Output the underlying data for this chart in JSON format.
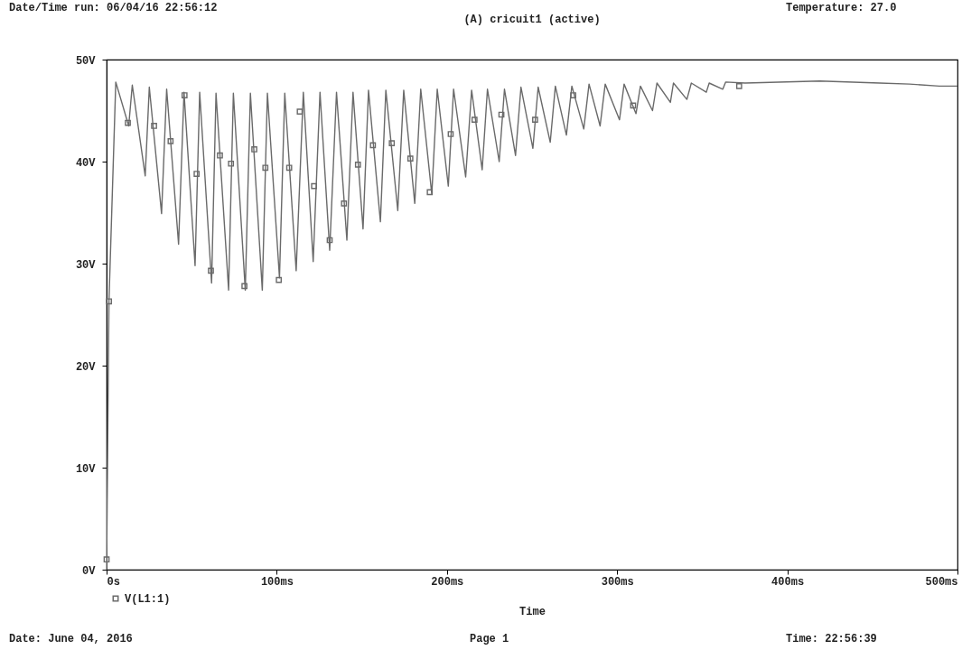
{
  "chart_data": {
    "type": "line",
    "title": "(A) cricuit1 (active)",
    "xlabel": "Time",
    "annotations": [
      "Date/Time run: 06/04/16 22:56:12",
      "Temperature: 27.0",
      "Date: June 04, 2016",
      "Page 1",
      "Time: 22:56:39"
    ],
    "xlim": [
      0,
      500
    ],
    "ylim": [
      0,
      50
    ],
    "xticks": [
      {
        "value": 0,
        "label": "0s"
      },
      {
        "value": 100,
        "label": "100ms"
      },
      {
        "value": 200,
        "label": "200ms"
      },
      {
        "value": 300,
        "label": "300ms"
      },
      {
        "value": 400,
        "label": "400ms"
      },
      {
        "value": 500,
        "label": "500ms"
      }
    ],
    "yticks": [
      {
        "value": 0,
        "label": "0V"
      },
      {
        "value": 10,
        "label": "10V"
      },
      {
        "value": 20,
        "label": "20V"
      },
      {
        "value": 30,
        "label": "30V"
      },
      {
        "value": 40,
        "label": "40V"
      },
      {
        "value": 50,
        "label": "50V"
      }
    ],
    "grid": false,
    "legend": "bottom left",
    "series": [
      {
        "name": "V(L1:1)",
        "color": "#6a6a6a",
        "x": [
          0,
          1.4,
          5.4,
          13.0,
          15.1,
          22.7,
          25.1,
          32.3,
          35.3,
          42.3,
          45.5,
          52.0,
          54.7,
          61.7,
          64.3,
          71.7,
          74.5,
          81.5,
          84.5,
          91.5,
          94.5,
          101.6,
          104.7,
          111.4,
          115.6,
          121.4,
          125.4,
          131.1,
          135.1,
          141.2,
          144.8,
          150.7,
          153.9,
          160.9,
          164.1,
          171.1,
          174.6,
          181.1,
          184.6,
          191.1,
          194.3,
          200.8,
          203.9,
          211.0,
          214.5,
          220.7,
          223.8,
          230.7,
          233.8,
          240.3,
          243.5,
          250.5,
          253.6,
          260.7,
          263.7,
          270.2,
          273.4,
          280.4,
          283.5,
          290.0,
          293.0,
          301.4,
          304.1,
          311.1,
          313.7,
          320.8,
          323.4,
          331.3,
          333.1,
          341.0,
          343.6,
          352.4,
          354.1,
          362.1,
          363.8,
          375.2,
          419.1,
          454.3,
          471.8,
          489.4,
          500
        ],
        "values": [
          0,
          26.3,
          47.8,
          43.5,
          47.5,
          38.6,
          47.3,
          34.9,
          47.1,
          31.9,
          46.8,
          29.8,
          46.8,
          28.1,
          46.7,
          27.4,
          46.7,
          27.4,
          46.7,
          27.4,
          46.7,
          28.6,
          46.7,
          29.3,
          46.8,
          30.2,
          46.8,
          31.3,
          46.8,
          32.3,
          46.8,
          33.4,
          47.0,
          34.1,
          47.0,
          35.2,
          47.0,
          35.9,
          47.1,
          36.8,
          47.1,
          37.6,
          47.1,
          38.5,
          47.0,
          39.2,
          47.1,
          40.0,
          47.1,
          40.6,
          47.3,
          41.3,
          47.3,
          41.9,
          47.4,
          42.6,
          47.4,
          43.2,
          47.6,
          43.5,
          47.6,
          44.1,
          47.6,
          44.7,
          47.4,
          45.0,
          47.7,
          45.8,
          47.7,
          46.1,
          47.7,
          46.8,
          47.7,
          47.1,
          47.8,
          47.7,
          47.9,
          47.7,
          47.6,
          47.4,
          47.4
        ]
      },
      {
        "type": "scatter",
        "color": "#6a6a6a",
        "marker": "square",
        "x": [
          0,
          1.4,
          12.5,
          27.9,
          37.6,
          45.8,
          52.9,
          61.3,
          66.6,
          73.1,
          81.0,
          86.8,
          93.3,
          101.2,
          107.3,
          113.5,
          121.9,
          131.1,
          139.5,
          147.7,
          156.5,
          167.6,
          178.5,
          189.9,
          202.2,
          216.2,
          232.0,
          251.8,
          274.2,
          309.4,
          371.7
        ],
        "values": [
          1.0,
          26.3,
          43.8,
          43.5,
          42.0,
          46.5,
          38.8,
          29.3,
          40.6,
          39.8,
          27.8,
          41.2,
          39.4,
          28.4,
          39.4,
          44.9,
          37.6,
          32.3,
          35.9,
          39.7,
          41.6,
          41.8,
          40.3,
          37.0,
          42.7,
          44.1,
          44.6,
          44.1,
          46.5,
          45.5,
          47.4
        ]
      }
    ]
  }
}
